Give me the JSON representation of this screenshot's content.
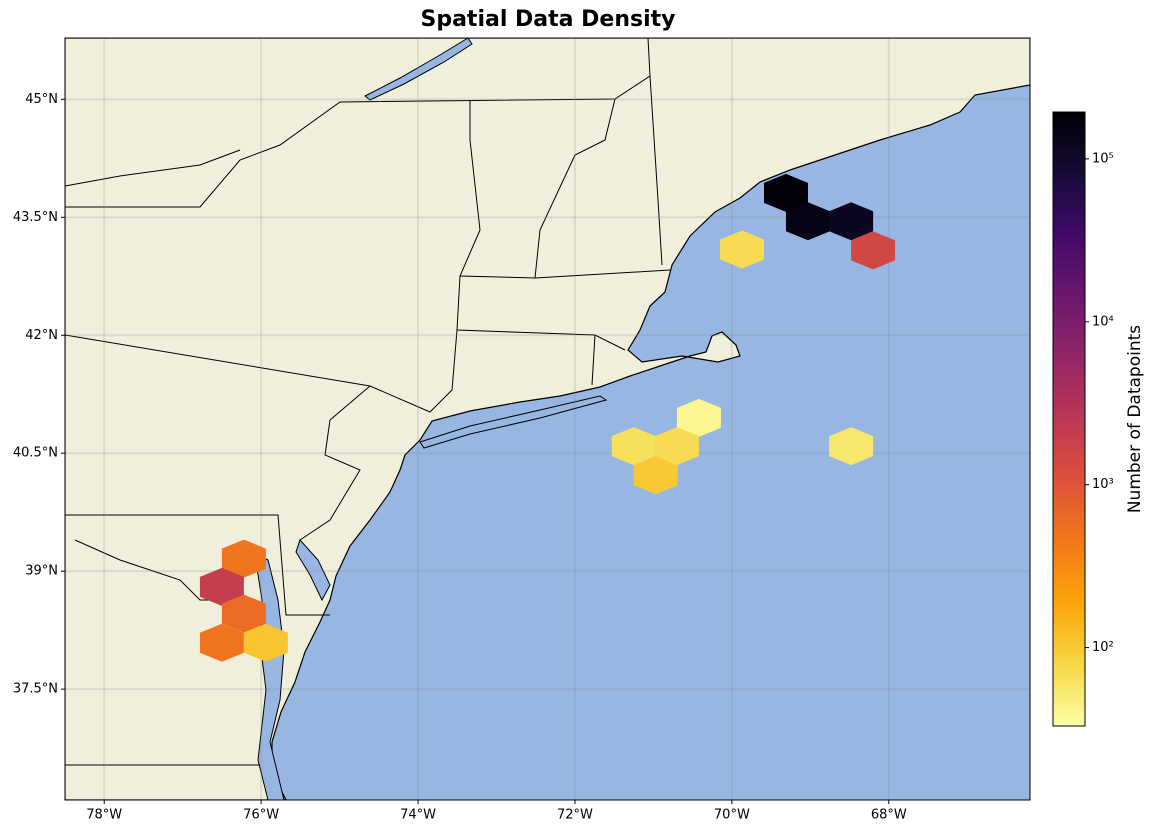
{
  "chart_data": {
    "type": "hexbin",
    "title": "Spatial Data Density",
    "xlim": [
      -78.5,
      -66.2
    ],
    "ylim": [
      36.09,
      45.78
    ],
    "xticks": [
      {
        "value": -78,
        "label": "78°W"
      },
      {
        "value": -76,
        "label": "76°W"
      },
      {
        "value": -74,
        "label": "74°W"
      },
      {
        "value": -72,
        "label": "72°W"
      },
      {
        "value": -70,
        "label": "70°W"
      },
      {
        "value": -68,
        "label": "68°W"
      }
    ],
    "yticks": [
      {
        "value": 37.5,
        "label": "37.5°N"
      },
      {
        "value": 39,
        "label": "39°N"
      },
      {
        "value": 40.5,
        "label": "40.5°N"
      },
      {
        "value": 42,
        "label": "42°N"
      },
      {
        "value": 43.5,
        "label": "43.5°N"
      },
      {
        "value": 45,
        "label": "45°N"
      }
    ],
    "grid": true,
    "land_color": "#efefdc",
    "ocean_color": "#97b6e1",
    "colorbar": {
      "label": "Number of Datapoints",
      "scale": "log",
      "lim": [
        33,
        194000
      ],
      "ticks": [
        {
          "value": 100,
          "label": "10²"
        },
        {
          "value": 1000,
          "label": "10³"
        },
        {
          "value": 10000,
          "label": "10⁴"
        },
        {
          "value": 100000,
          "label": "10⁵"
        }
      ],
      "colormap": [
        "#fcffa4",
        "#f6d746",
        "#fca50a",
        "#f37819",
        "#dd513a",
        "#bc3754",
        "#932667",
        "#6a176e",
        "#420a68",
        "#160b39",
        "#000004"
      ]
    },
    "hexbins": [
      {
        "lon": -69.31,
        "lat": 43.81,
        "count": 180000
      },
      {
        "lon": -69.03,
        "lat": 43.45,
        "count": 150000
      },
      {
        "lon": -68.48,
        "lat": 43.45,
        "count": 120000
      },
      {
        "lon": -68.2,
        "lat": 43.08,
        "count": 1500
      },
      {
        "lon": -69.87,
        "lat": 43.09,
        "count": 70
      },
      {
        "lon": -70.42,
        "lat": 40.95,
        "count": 40
      },
      {
        "lon": -71.25,
        "lat": 40.59,
        "count": 65
      },
      {
        "lon": -70.7,
        "lat": 40.59,
        "count": 70
      },
      {
        "lon": -70.97,
        "lat": 40.22,
        "count": 100
      },
      {
        "lon": -68.48,
        "lat": 40.59,
        "count": 55
      },
      {
        "lon": -76.22,
        "lat": 39.16,
        "count": 500
      },
      {
        "lon": -76.5,
        "lat": 38.8,
        "count": 2000
      },
      {
        "lon": -76.22,
        "lat": 38.46,
        "count": 600
      },
      {
        "lon": -76.5,
        "lat": 38.09,
        "count": 500
      },
      {
        "lon": -75.94,
        "lat": 38.09,
        "count": 110
      }
    ]
  }
}
